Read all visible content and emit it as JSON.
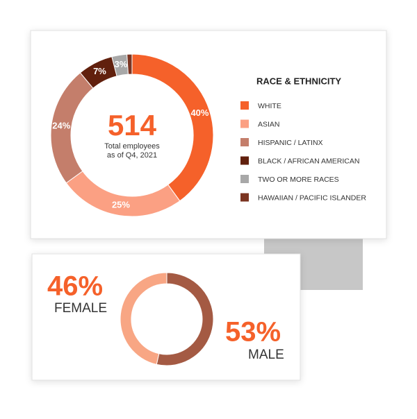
{
  "chart_data": [
    {
      "type": "donut",
      "title": "RACE & ETHNICITY",
      "total": 514,
      "center_label": [
        "Total employees",
        "as of Q4, 2021"
      ],
      "categories": [
        "WHITE",
        "ASIAN",
        "HISPANIC / LATINX",
        "BLACK / AFRICAN AMERICAN",
        "TWO OR MORE RACES",
        "HAWAIIAN / PACIFIC ISLANDER"
      ],
      "values": [
        40,
        25,
        24,
        7,
        3,
        1
      ],
      "value_labels": [
        "40%",
        "25%",
        "24%",
        "7%",
        "3%",
        null
      ],
      "colors": [
        "#f5612a",
        "#fba083",
        "#c47e6b",
        "#61200d",
        "#a8a8a8",
        "#7b3421"
      ]
    },
    {
      "type": "donut",
      "categories": [
        "FEMALE",
        "MALE"
      ],
      "values": [
        46,
        53
      ],
      "value_labels": [
        "46%",
        "53%"
      ],
      "colors": [
        "#f8a684",
        "#a45a43"
      ]
    }
  ]
}
